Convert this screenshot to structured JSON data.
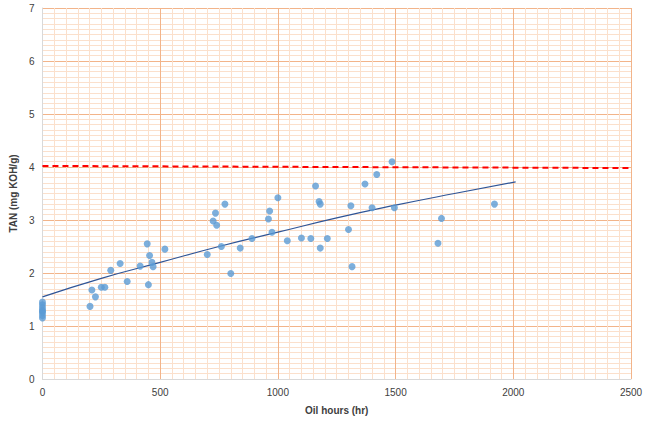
{
  "chart_data": {
    "type": "scatter",
    "x_label": "Oil hours (hr)",
    "y_label": "TAN (mg KOH/g)",
    "xlim": [
      0,
      2500
    ],
    "xticks": [
      0,
      500,
      1000,
      1500,
      2000,
      2500
    ],
    "ylim": [
      0,
      7
    ],
    "yticks": [
      0,
      1,
      2,
      3,
      4,
      5,
      6,
      7
    ],
    "grid": true,
    "series": [
      {
        "type": "scatter",
        "color": "#5b9bd5",
        "marker": "circle",
        "x": [
          0,
          0,
          0,
          0,
          0,
          0,
          0,
          0,
          202,
          210,
          225,
          250,
          265,
          290,
          330,
          360,
          415,
          445,
          450,
          455,
          465,
          470,
          520,
          700,
          725,
          735,
          740,
          760,
          775,
          800,
          840,
          890,
          960,
          965,
          975,
          1000,
          1040,
          1100,
          1140,
          1160,
          1175,
          1180,
          1180,
          1210,
          1300,
          1310,
          1315,
          1370,
          1400,
          1420,
          1485,
          1495,
          1680,
          1695,
          1920
        ],
        "values": [
          1.15,
          1.2,
          1.25,
          1.28,
          1.3,
          1.35,
          1.4,
          1.45,
          1.37,
          1.68,
          1.55,
          1.73,
          1.73,
          2.05,
          2.18,
          1.84,
          2.13,
          2.55,
          1.78,
          2.33,
          2.2,
          2.12,
          2.45,
          2.35,
          2.98,
          3.13,
          2.9,
          2.5,
          3.3,
          1.99,
          2.47,
          2.65,
          3.02,
          3.17,
          2.77,
          3.42,
          2.61,
          2.66,
          2.65,
          3.64,
          3.35,
          3.3,
          2.47,
          2.65,
          2.82,
          3.27,
          2.12,
          3.68,
          3.23,
          3.86,
          4.1,
          3.23,
          2.56,
          3.03,
          3.3
        ]
      },
      {
        "type": "line",
        "color": "#2f5597",
        "line_style": "solid",
        "x": [
          0,
          250,
          500,
          750,
          1000,
          1250,
          1500,
          1750,
          2010
        ],
        "values": [
          1.55,
          1.9,
          2.2,
          2.5,
          2.77,
          3.04,
          3.28,
          3.5,
          3.72
        ]
      },
      {
        "type": "line",
        "color": "#ff0000",
        "line_style": "dashed",
        "x": [
          0,
          2500
        ],
        "values": [
          4.02,
          3.98
        ]
      }
    ]
  }
}
